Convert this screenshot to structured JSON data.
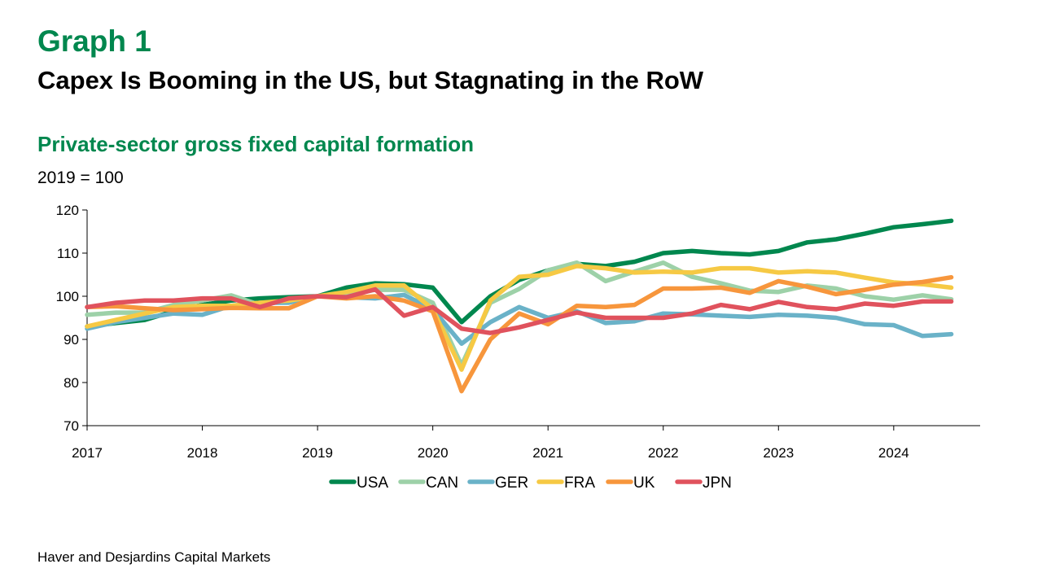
{
  "header": {
    "graph_label": "Graph 1",
    "title": "Capex Is Booming in the US, but Stagnating in the RoW",
    "subtitle": "Private-sector gross fixed capital formation",
    "unit": "2019 = 100"
  },
  "footer": {
    "source": "Haver and Desjardins Capital Markets"
  },
  "chart_data": {
    "type": "line",
    "title": "Private-sector gross fixed capital formation",
    "ylabel": "2019 = 100",
    "xlabel": "",
    "ylim": [
      70,
      120
    ],
    "yticks": [
      70,
      80,
      90,
      100,
      110,
      120
    ],
    "xlim": [
      2017.0,
      2024.75
    ],
    "xticks": [
      2017,
      2018,
      2019,
      2020,
      2021,
      2022,
      2023,
      2024
    ],
    "grid": false,
    "legend_position": "bottom",
    "x": [
      2017.0,
      2017.25,
      2017.5,
      2017.75,
      2018.0,
      2018.25,
      2018.5,
      2018.75,
      2019.0,
      2019.25,
      2019.5,
      2019.75,
      2020.0,
      2020.25,
      2020.5,
      2020.75,
      2021.0,
      2021.25,
      2021.5,
      2021.75,
      2022.0,
      2022.25,
      2022.5,
      2022.75,
      2023.0,
      2023.25,
      2023.5,
      2023.75,
      2024.0,
      2024.25,
      2024.5
    ],
    "series": [
      {
        "name": "USA",
        "color": "#00874e",
        "values": [
          93,
          93.8,
          94.5,
          96.5,
          98,
          99,
          99.5,
          99.8,
          100,
          102,
          103,
          102.8,
          102,
          94,
          100,
          103.8,
          106,
          107.5,
          107,
          108,
          110,
          110.5,
          110,
          109.7,
          110.5,
          112.5,
          113.2,
          114.5,
          116,
          116.7,
          117.5
        ]
      },
      {
        "name": "CAN",
        "color": "#9dd1a8",
        "values": [
          95.7,
          96.2,
          96.2,
          98,
          99,
          100.2,
          98,
          99,
          100,
          100.2,
          101.5,
          101.5,
          98.5,
          84,
          98.5,
          101.7,
          106,
          107.8,
          103.5,
          105.7,
          107.8,
          104.5,
          103,
          101.3,
          101,
          102.5,
          101.8,
          100,
          99.2,
          100.2,
          99.3
        ]
      },
      {
        "name": "GER",
        "color": "#6ab2c8",
        "values": [
          92.5,
          94,
          95,
          96,
          95.7,
          97.8,
          98.5,
          98.5,
          100,
          99.8,
          99.5,
          100.3,
          97,
          89,
          94,
          97.5,
          95,
          96.5,
          93.8,
          94.2,
          96,
          95.8,
          95.5,
          95.2,
          95.7,
          95.5,
          95,
          93.5,
          93.3,
          90.8,
          91.2
        ]
      },
      {
        "name": "FRA",
        "color": "#f6c944",
        "values": [
          93,
          94.5,
          96,
          97.5,
          97.8,
          97.8,
          98.5,
          99,
          100,
          101,
          102.5,
          102.5,
          97,
          83,
          99,
          104.5,
          105,
          107,
          106.5,
          105.5,
          105.7,
          105.5,
          106.5,
          106.5,
          105.5,
          105.8,
          105.5,
          104.3,
          103.2,
          102.8,
          102
        ]
      },
      {
        "name": "UK",
        "color": "#f7963c",
        "values": [
          97.5,
          97.7,
          97.2,
          96.8,
          97,
          97.3,
          97.2,
          97.2,
          100,
          99.5,
          100,
          99,
          96.5,
          78,
          90,
          96,
          93.5,
          97.8,
          97.5,
          98,
          101.8,
          101.8,
          102,
          100.8,
          103.5,
          102.2,
          100.5,
          101.5,
          102.7,
          103.3,
          104.4
        ]
      },
      {
        "name": "JPN",
        "color": "#e0525d",
        "values": [
          97.5,
          98.5,
          99,
          99,
          99.5,
          99.5,
          97.5,
          99.5,
          100,
          99.8,
          101.6,
          95.5,
          97.5,
          92.5,
          91.5,
          92.8,
          94.5,
          96.2,
          95,
          95,
          95,
          96,
          98,
          97,
          98.7,
          97.5,
          97,
          98.3,
          97.8,
          98.8,
          98.8
        ]
      }
    ]
  }
}
